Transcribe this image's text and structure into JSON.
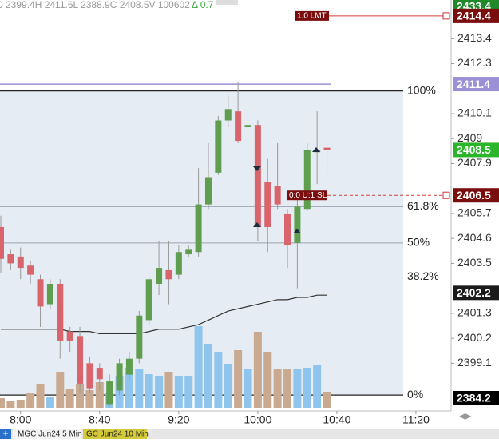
{
  "header": {
    "ohlc_text": "0 2399.4H 2411.6L 2388.9C 2408.5V 100602",
    "change_text": "Δ 0.7"
  },
  "tabs": [
    "MGC Jun24 5 Min",
    "GC Jun24 10 Min"
  ],
  "chart_data": {
    "type": "candlestick",
    "categories": [
      null,
      null,
      "8:00",
      null,
      null,
      null,
      null,
      null,
      null,
      null,
      "8:40",
      null,
      null,
      null,
      null,
      null,
      null,
      null,
      "9:20",
      null,
      null,
      null,
      null,
      null,
      null,
      null,
      "10:00",
      null,
      null,
      null,
      null,
      null,
      null,
      null,
      "10:40",
      null,
      null,
      null,
      null,
      null,
      null,
      null,
      "11:20"
    ],
    "open": [
      2405.1,
      2403.9,
      2403.8,
      2403.4,
      2402.8,
      2401.7,
      2402.6,
      2400.5,
      2400.3,
      2399.1,
      2398.9,
      2397.3,
      2397.9,
      2398.6,
      2399.3,
      2401.0,
      2402.6,
      2403.2,
      2403.0,
      2403.9,
      2404.0,
      2406.1,
      2407.5,
      2409.8,
      2410.2,
      2409.5,
      2409.6,
      2407.1,
      2406.9,
      2405.7,
      2404.4,
      2405.9,
      2408.4,
      2408.6,
      null,
      null,
      null,
      null,
      null,
      null,
      null,
      null,
      null
    ],
    "high": [
      2405.6,
      2404.1,
      2404.2,
      2403.6,
      2403.0,
      2402.8,
      2402.8,
      2400.7,
      2400.7,
      2399.4,
      2399.1,
      2398.6,
      2399.3,
      2399.6,
      2401.4,
      2402.9,
      2404.5,
      2404.5,
      2404.3,
      2404.3,
      2407.7,
      2408.8,
      2410.0,
      2410.9,
      2411.5,
      2409.8,
      2409.8,
      2408.1,
      2408.8,
      2405.9,
      2406.3,
      2408.8,
      2410.2,
      2408.9,
      null,
      null,
      null,
      null,
      null,
      null,
      null,
      null,
      null
    ],
    "low": [
      2403.1,
      2403.2,
      2402.8,
      2402.6,
      2400.7,
      2401.5,
      2399.3,
      2399.6,
      2397.8,
      2397.8,
      2397.9,
      2397.2,
      2397.7,
      2398.4,
      2399.1,
      2400.8,
      2402.1,
      2401.7,
      2402.8,
      2403.8,
      2403.8,
      2405.9,
      2407.4,
      2409.5,
      2408.8,
      2409.3,
      2404.5,
      2404.0,
      2405.9,
      2403.3,
      2402.4,
      2405.8,
      2407.0,
      2407.5,
      null,
      null,
      null,
      null,
      null,
      null,
      null,
      null,
      null
    ],
    "close": [
      2403.7,
      2403.5,
      2403.3,
      2403.0,
      2401.6,
      2402.6,
      2400.1,
      2400.1,
      2398.2,
      2398.0,
      2398.4,
      2398.3,
      2399.1,
      2399.3,
      2401.2,
      2402.8,
      2403.3,
      2402.8,
      2404.0,
      2404.1,
      2406.1,
      2407.3,
      2409.8,
      2410.3,
      2408.9,
      2409.6,
      2405.1,
      2405.1,
      2406.1,
      2404.3,
      2406.0,
      2408.5,
      2408.5,
      2408.5,
      null,
      null,
      null,
      null,
      null,
      null,
      null,
      null,
      null
    ],
    "volume": [
      120,
      80,
      100,
      180,
      300,
      140,
      450,
      240,
      300,
      220,
      320,
      180,
      400,
      500,
      480,
      420,
      400,
      450,
      400,
      400,
      1020,
      800,
      700,
      550,
      720,
      480,
      950,
      700,
      480,
      480,
      480,
      500,
      530,
      200,
      null,
      null,
      null,
      null,
      null,
      null,
      null,
      null,
      null
    ],
    "ma": [
      2400.6,
      2400.6,
      2400.6,
      2400.6,
      2400.6,
      2400.6,
      2400.6,
      2400.5,
      2400.5,
      2400.5,
      2400.4,
      2400.4,
      2400.4,
      2400.4,
      2400.4,
      2400.5,
      2400.6,
      2400.6,
      2400.6,
      2400.7,
      2400.8,
      2401.0,
      2401.2,
      2401.4,
      2401.5,
      2401.6,
      2401.7,
      2401.8,
      2401.9,
      2401.9,
      2402.0,
      2402.0,
      2402.1,
      2402.1,
      null,
      null,
      null,
      null,
      null,
      null,
      null,
      null,
      null
    ],
    "ylim": [
      2397.0,
      2415.1
    ],
    "yticks": [
      2413.4,
      2412.3,
      2410.1,
      2409.0,
      2407.9,
      2405.7,
      2404.6,
      2403.5,
      2401.3,
      2400.2,
      2399.1
    ],
    "volume_lim": [
      0,
      1100
    ],
    "price_markers": [
      {
        "price": 2433.4,
        "color": "#1f8a2a"
      },
      {
        "price": 2414.4,
        "color": "#7a0d0d"
      },
      {
        "price": 2411.4,
        "color": "#9b8fd6"
      },
      {
        "price": 2408.5,
        "color": "#2bb52b"
      },
      {
        "price": 2406.5,
        "color": "#7a0d0d"
      },
      {
        "price": 2402.2,
        "color": "#1a1a1a"
      },
      {
        "price": 2384.2,
        "color": "#000000"
      }
    ],
    "reference_line": {
      "price": 2411.4,
      "color": "#9b8fd6"
    },
    "levels": [
      {
        "label": "100%",
        "price": 2411.1
      },
      {
        "label": "61.8%",
        "price": 2406.0
      },
      {
        "label": "50%",
        "price": 2404.4
      },
      {
        "label": "38.2%",
        "price": 2402.9
      },
      {
        "label": "0%",
        "price": 2397.7
      }
    ],
    "orders": [
      {
        "label": "1:0 LMT",
        "price": 2414.4
      },
      {
        "label": "0:0 U:1 SL",
        "price": 2406.5
      }
    ],
    "up_color": "#5e9e4e",
    "down_color": "#d9646c",
    "vol_up_color": "#8fc4ec",
    "vol_down_color": "#c9aa90",
    "ma_color": "#333333"
  }
}
